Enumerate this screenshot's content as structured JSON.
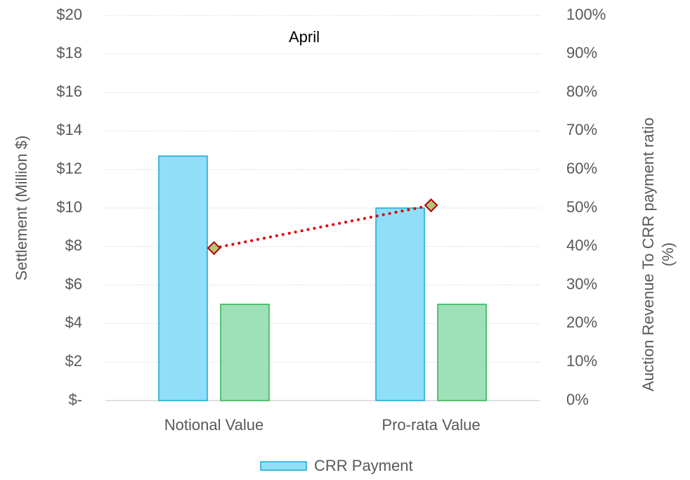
{
  "chart_data": {
    "type": "bar",
    "annotation": "April",
    "ylabel": "Settlement (Million $)",
    "y2label": [
      "Auction Revenue To CRR payment ratio",
      "(%)"
    ],
    "categories": [
      "Notional Value",
      "Pro-rata Value"
    ],
    "series": [
      {
        "name": "CRR Payment",
        "type": "bar",
        "color": "#8fdff8",
        "stroke": "#1aa6d8",
        "values": [
          12.7,
          10.0
        ]
      },
      {
        "type": "bar",
        "color": "#9ee0b8",
        "stroke": "#2bb34f",
        "values": [
          5.0,
          5.0
        ]
      },
      {
        "type": "line",
        "axis": "y2",
        "color": "#e00000",
        "marker_color": "#b8c47a",
        "marker_stroke": "#b00000",
        "values": [
          39.6,
          50.7
        ]
      }
    ],
    "ylim": [
      0,
      20
    ],
    "yticks": [
      {
        "value": 0,
        "label": "$-"
      },
      {
        "value": 2,
        "label": "$2"
      },
      {
        "value": 4,
        "label": "$4"
      },
      {
        "value": 6,
        "label": "$6"
      },
      {
        "value": 8,
        "label": "$8"
      },
      {
        "value": 10,
        "label": "$10"
      },
      {
        "value": 12,
        "label": "$12"
      },
      {
        "value": 14,
        "label": "$14"
      },
      {
        "value": 16,
        "label": "$16"
      },
      {
        "value": 18,
        "label": "$18"
      },
      {
        "value": 20,
        "label": "$20"
      }
    ],
    "y2lim": [
      0,
      100
    ],
    "y2ticks": [
      {
        "value": 0,
        "label": "0%"
      },
      {
        "value": 10,
        "label": "10%"
      },
      {
        "value": 20,
        "label": "20%"
      },
      {
        "value": 30,
        "label": "30%"
      },
      {
        "value": 40,
        "label": "40%"
      },
      {
        "value": 50,
        "label": "50%"
      },
      {
        "value": 60,
        "label": "60%"
      },
      {
        "value": 70,
        "label": "70%"
      },
      {
        "value": 80,
        "label": "80%"
      },
      {
        "value": 90,
        "label": "90%"
      },
      {
        "value": 100,
        "label": "100%"
      }
    ],
    "grid": true,
    "legend": "bottom"
  }
}
